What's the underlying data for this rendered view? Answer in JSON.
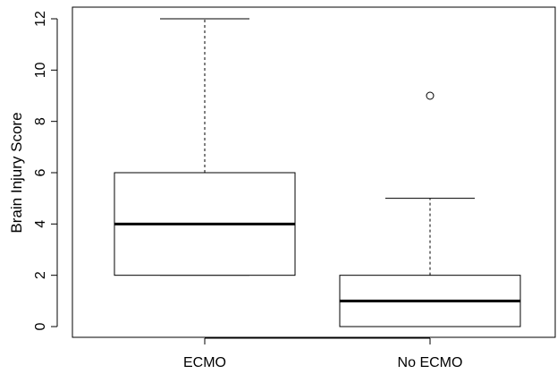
{
  "chart_data": {
    "type": "boxplot",
    "ylabel": "Brain Injury Score",
    "xlabel": "",
    "ylim": [
      0,
      12
    ],
    "yticks": [
      0,
      2,
      4,
      6,
      8,
      10,
      12
    ],
    "categories": [
      "ECMO",
      "No ECMO"
    ],
    "boxes": [
      {
        "category": "ECMO",
        "whisker_low": 2,
        "q1": 2,
        "median": 4,
        "q3": 6,
        "whisker_high": 12,
        "outliers": []
      },
      {
        "category": "No ECMO",
        "whisker_low": 0,
        "q1": 0,
        "median": 1,
        "q3": 2,
        "whisker_high": 5,
        "outliers": [
          9
        ]
      }
    ]
  }
}
